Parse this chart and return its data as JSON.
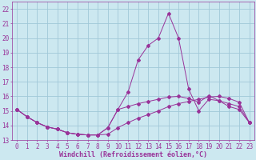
{
  "xlabel": "Windchill (Refroidissement éolien,°C)",
  "background_color": "#cce8f0",
  "grid_color": "#a0c8d8",
  "line_color": "#993399",
  "xlim": [
    -0.5,
    23.5
  ],
  "ylim": [
    13,
    22.5
  ],
  "xticks": [
    0,
    1,
    2,
    3,
    4,
    5,
    6,
    7,
    8,
    9,
    10,
    11,
    12,
    13,
    14,
    15,
    16,
    17,
    18,
    19,
    20,
    21,
    22,
    23
  ],
  "yticks": [
    13,
    14,
    15,
    16,
    17,
    18,
    19,
    20,
    21,
    22
  ],
  "line1_x": [
    0,
    1,
    2,
    3,
    4,
    5,
    6,
    7,
    8,
    9,
    10,
    11,
    12,
    13,
    14,
    15,
    16,
    17,
    18,
    19,
    20,
    21,
    22,
    23
  ],
  "line1_y": [
    15.1,
    14.6,
    14.2,
    13.9,
    13.75,
    13.5,
    13.4,
    13.35,
    13.35,
    13.4,
    13.85,
    14.2,
    14.5,
    14.75,
    15.0,
    15.3,
    15.5,
    15.65,
    15.8,
    15.95,
    16.0,
    15.85,
    15.6,
    14.2
  ],
  "line2_x": [
    0,
    1,
    2,
    3,
    4,
    5,
    6,
    7,
    8,
    9,
    10,
    11,
    12,
    13,
    14,
    15,
    16,
    17,
    18,
    19,
    20,
    21,
    22,
    23
  ],
  "line2_y": [
    15.1,
    14.6,
    14.2,
    13.9,
    13.75,
    13.5,
    13.4,
    13.35,
    13.35,
    13.85,
    15.1,
    16.3,
    18.5,
    19.5,
    20.0,
    21.7,
    20.0,
    16.5,
    15.0,
    15.8,
    15.7,
    15.5,
    15.3,
    14.2
  ],
  "line3_x": [
    0,
    1,
    2,
    3,
    4,
    5,
    6,
    7,
    8,
    9,
    10,
    11,
    12,
    13,
    14,
    15,
    16,
    17,
    18,
    19,
    20,
    21,
    22,
    23
  ],
  "line3_y": [
    15.1,
    14.6,
    14.2,
    13.9,
    13.75,
    13.5,
    13.4,
    13.35,
    13.35,
    13.85,
    15.1,
    15.3,
    15.5,
    15.65,
    15.8,
    15.95,
    16.0,
    15.85,
    15.6,
    16.05,
    15.7,
    15.3,
    15.1,
    14.2
  ],
  "tick_font_size": 5.5,
  "xlabel_font_size": 6.0
}
